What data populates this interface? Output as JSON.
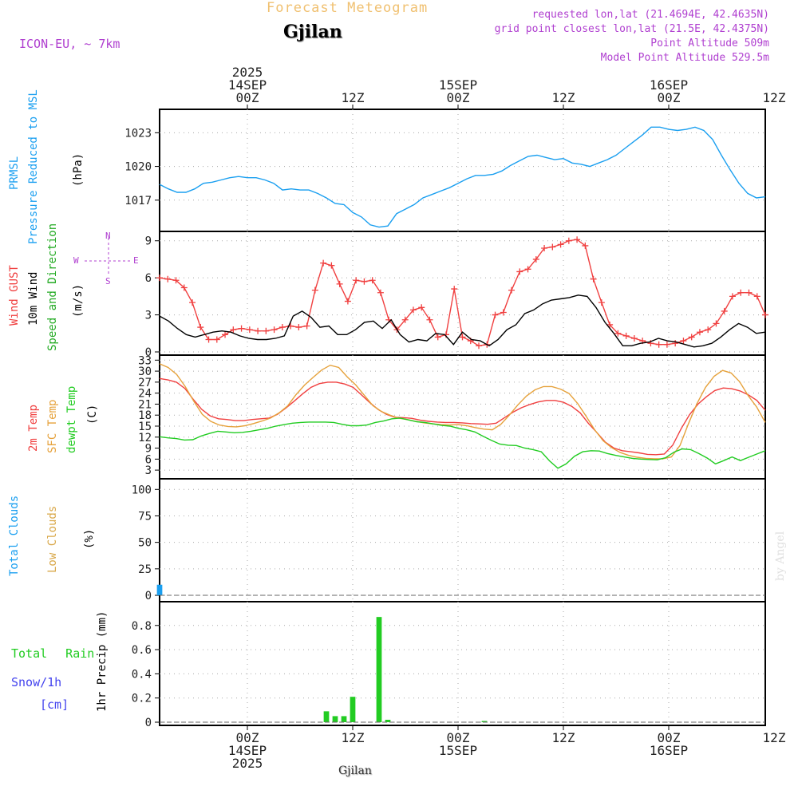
{
  "header": {
    "forecast_title": "Forecast Meteogram",
    "location": "Gjilan",
    "model": "ICON-EU, ~ 7km",
    "requested": "requested lon,lat (21.4694E, 42.4635N)",
    "grid_point": "grid point closest lon,lat (21.5E, 42.4375N)",
    "point_altitude": "Point Altitude 509m",
    "model_altitude": "Model Point Altitude 529.5m",
    "credit": "by Angel",
    "bottom_location": "Gjilan"
  },
  "colors": {
    "pressure": "#1a9ff0",
    "gust": "#f04040",
    "wind": "#000000",
    "temp2m": "#f04040",
    "sfc": "#e6a23c",
    "dew": "#22cc22",
    "total_cloud": "#1a9ff0",
    "low_cloud": "#d9a84a",
    "rain": "#22cc22",
    "snow": "#4444ee",
    "purple": "#b040d0",
    "title_light": "#f0c070"
  },
  "chart_data": {
    "type": "meteogram",
    "time_axis": {
      "unit": "hours since 2025-09-13 14Z",
      "range": [
        0,
        69
      ],
      "top_ticks": [
        {
          "h": 10,
          "lines": [
            "2025",
            "14SEP",
            "00Z"
          ]
        },
        {
          "h": 22,
          "lines": [
            "12Z"
          ]
        },
        {
          "h": 34,
          "lines": [
            "15SEP",
            "00Z"
          ]
        },
        {
          "h": 46,
          "lines": [
            "12Z"
          ]
        },
        {
          "h": 58,
          "lines": [
            "16SEP",
            "00Z"
          ]
        },
        {
          "h": 70,
          "lines": [
            "12Z"
          ]
        }
      ],
      "bottom_ticks": [
        {
          "h": 10,
          "lines": [
            "00Z",
            "14SEP",
            "2025"
          ]
        },
        {
          "h": 22,
          "lines": [
            "12Z"
          ]
        },
        {
          "h": 34,
          "lines": [
            "00Z",
            "15SEP"
          ]
        },
        {
          "h": 46,
          "lines": [
            "12Z"
          ]
        },
        {
          "h": 58,
          "lines": [
            "00Z",
            "16SEP"
          ]
        },
        {
          "h": 70,
          "lines": [
            "12Z"
          ]
        }
      ]
    },
    "panels": [
      {
        "id": "pressure",
        "labels": [
          "PRMSL",
          "Pressure Reduced to MSL",
          "(hPa)"
        ],
        "ylim": [
          1014.5,
          1024.8
        ],
        "yticks": [
          1017,
          1020,
          1023
        ],
        "series": [
          {
            "name": "PRMSL",
            "color": "pressure",
            "values": [
              1018.4,
              1018.0,
              1017.7,
              1017.7,
              1018.0,
              1018.5,
              1018.6,
              1018.8,
              1019.0,
              1019.1,
              1019.0,
              1019.0,
              1018.8,
              1018.5,
              1017.9,
              1018.0,
              1017.9,
              1017.9,
              1017.6,
              1017.2,
              1016.7,
              1016.6,
              1015.9,
              1015.5,
              1014.8,
              1014.6,
              1014.7,
              1015.8,
              1016.2,
              1016.6,
              1017.2,
              1017.5,
              1017.8,
              1018.1,
              1018.5,
              1018.9,
              1019.2,
              1019.2,
              1019.3,
              1019.6,
              1020.1,
              1020.5,
              1020.9,
              1021.0,
              1020.8,
              1020.6,
              1020.7,
              1020.3,
              1020.2,
              1020.0,
              1020.3,
              1020.6,
              1021.0,
              1021.6,
              1022.2,
              1022.8,
              1023.5,
              1023.5,
              1023.3,
              1023.2,
              1023.3,
              1023.5,
              1023.2,
              1022.4,
              1021.0,
              1019.7,
              1018.5,
              1017.6,
              1017.2,
              1017.3
            ]
          }
        ]
      },
      {
        "id": "wind",
        "labels": [
          "Wind GUST",
          "10m Wind",
          "Speed and Direction",
          "(m/s)"
        ],
        "compass": [
          "N",
          "W",
          "E",
          "S"
        ],
        "ylim": [
          0,
          9.5
        ],
        "yticks": [
          0,
          3,
          6,
          9
        ],
        "series": [
          {
            "name": "Wind GUST",
            "color": "gust",
            "markers": true,
            "values": [
              6.0,
              5.9,
              5.8,
              5.2,
              4.0,
              2.0,
              1.0,
              1.0,
              1.4,
              1.8,
              1.9,
              1.8,
              1.7,
              1.7,
              1.8,
              2.0,
              2.1,
              2.0,
              2.1,
              5.0,
              7.2,
              7.0,
              5.5,
              4.1,
              5.8,
              5.7,
              5.8,
              4.8,
              2.6,
              1.8,
              2.6,
              3.4,
              3.6,
              2.6,
              1.2,
              1.4,
              5.1,
              1.2,
              0.9,
              0.5,
              0.6,
              3.0,
              3.2,
              5.0,
              6.5,
              6.7,
              7.5,
              8.4,
              8.5,
              8.7,
              9.0,
              9.1,
              8.6,
              5.9,
              4.0,
              2.2,
              1.5,
              1.3,
              1.1,
              0.9,
              0.7,
              0.6,
              0.6,
              0.7,
              0.9,
              1.2,
              1.6,
              1.8,
              2.3,
              3.3,
              4.5,
              4.8,
              4.8,
              4.5,
              3.0
            ]
          },
          {
            "name": "10m Wind",
            "color": "wind",
            "values": [
              2.9,
              2.5,
              1.9,
              1.4,
              1.2,
              1.4,
              1.6,
              1.7,
              1.6,
              1.3,
              1.1,
              1.0,
              1.0,
              1.1,
              1.3,
              2.9,
              3.3,
              2.8,
              2.0,
              2.1,
              1.4,
              1.4,
              1.8,
              2.4,
              2.5,
              1.9,
              2.6,
              1.4,
              0.8,
              1.0,
              0.9,
              1.5,
              1.4,
              0.6,
              1.6,
              1.0,
              0.9,
              0.5,
              1.0,
              1.8,
              2.2,
              3.1,
              3.4,
              3.9,
              4.2,
              4.3,
              4.4,
              4.6,
              4.5,
              3.6,
              2.4,
              1.5,
              0.5,
              0.5,
              0.7,
              0.8,
              1.1,
              0.9,
              0.8,
              0.6,
              0.4,
              0.5,
              0.7,
              1.2,
              1.8,
              2.3,
              2.0,
              1.5,
              1.6
            ]
          }
        ]
      },
      {
        "id": "temperature",
        "labels": [
          "2m Temp",
          "SFC Temp",
          "dewpt Temp",
          "(C)"
        ],
        "ylim": [
          1.5,
          33.5
        ],
        "yticks": [
          3,
          6,
          9,
          12,
          15,
          18,
          21,
          24,
          27,
          30,
          33
        ],
        "series": [
          {
            "name": "2m Temp",
            "color": "temp2m",
            "values": [
              28.0,
              27.6,
              27.0,
              25.3,
              22.3,
              19.6,
              17.8,
              17.0,
              16.8,
              16.5,
              16.5,
              16.8,
              17.0,
              17.2,
              18.2,
              19.9,
              21.8,
              23.8,
              25.6,
              26.6,
              27.0,
              27.0,
              26.5,
              25.6,
              23.5,
              21.4,
              19.5,
              18.2,
              17.4,
              17.3,
              17.1,
              16.6,
              16.3,
              16.1,
              16.0,
              16.0,
              15.9,
              15.7,
              15.6,
              15.5,
              15.8,
              17.3,
              18.8,
              20.0,
              20.9,
              21.6,
              22.0,
              22.0,
              21.5,
              20.4,
              18.6,
              15.7,
              13.2,
              10.6,
              9.0,
              8.3,
              8.0,
              7.7,
              7.3,
              7.2,
              7.4,
              9.8,
              14.3,
              18.1,
              21.0,
              23.0,
              24.7,
              25.4,
              25.2,
              24.6,
              23.5,
              22.0,
              19.3
            ]
          },
          {
            "name": "SFC Temp",
            "color": "sfc",
            "values": [
              32.0,
              31.0,
              29.1,
              25.8,
              21.8,
              18.2,
              16.3,
              15.3,
              14.9,
              14.8,
              15.1,
              15.7,
              16.4,
              17.2,
              18.6,
              20.5,
              23.6,
              26.2,
              28.3,
              30.3,
              31.6,
              31.0,
              28.4,
              26.2,
              23.4,
              20.6,
              19.0,
              18.0,
              17.2,
              16.8,
              16.3,
              15.9,
              15.6,
              15.4,
              15.3,
              15.4,
              15.1,
              14.6,
              14.2,
              14.0,
              15.5,
              18.0,
              20.8,
              23.2,
              24.9,
              25.8,
              25.8,
              25.1,
              23.9,
              21.2,
              17.7,
              14.0,
              11.0,
              9.1,
              7.8,
              7.0,
              6.5,
              6.2,
              6.1,
              6.1,
              6.6,
              9.7,
              15.7,
              21.2,
              25.6,
              28.6,
              30.2,
              29.5,
              27.1,
              23.3,
              20.2,
              16.0
            ]
          },
          {
            "name": "dewpt Temp",
            "color": "dew",
            "values": [
              12.1,
              11.8,
              11.6,
              11.2,
              11.3,
              12.3,
              13.0,
              13.6,
              13.4,
              13.2,
              13.3,
              13.6,
              14.0,
              14.4,
              15.0,
              15.4,
              15.8,
              16.0,
              16.1,
              16.1,
              16.1,
              16.0,
              15.5,
              15.1,
              15.1,
              15.3,
              16.0,
              16.4,
              17.0,
              17.2,
              16.7,
              16.2,
              16.0,
              15.6,
              15.2,
              15.0,
              14.4,
              14.0,
              13.4,
              12.2,
              11.1,
              10.1,
              9.8,
              9.7,
              9.0,
              8.6,
              8.0,
              5.5,
              3.5,
              4.7,
              6.8,
              8.0,
              8.3,
              8.2,
              7.5,
              7.0,
              6.6,
              6.2,
              6.0,
              5.9,
              5.8,
              6.4,
              7.9,
              8.8,
              8.6,
              7.5,
              6.3,
              4.7,
              5.6,
              6.6,
              5.6,
              6.5,
              7.4,
              8.3
            ]
          }
        ]
      },
      {
        "id": "clouds",
        "labels": [
          "Total Clouds",
          "Low Clouds",
          "(%)"
        ],
        "ylim": [
          -3,
          107
        ],
        "yticks": [
          0,
          25,
          50,
          75,
          100
        ],
        "series": [
          {
            "name": "Total Clouds",
            "color": "total_cloud",
            "values": [
              10,
              0,
              0,
              0,
              0,
              0,
              0,
              0,
              0,
              0,
              0,
              0,
              0,
              0,
              0,
              0,
              0,
              0,
              0,
              0,
              0,
              0,
              0,
              0,
              0,
              0,
              0,
              0,
              0,
              0,
              0,
              0,
              0,
              0,
              0,
              0,
              0,
              0,
              0,
              0,
              0,
              0,
              0,
              0,
              0,
              0,
              0,
              0,
              0,
              0,
              0,
              0,
              0,
              0,
              0,
              0,
              0,
              0,
              0,
              0,
              0,
              0,
              0,
              0,
              0,
              0,
              0,
              0,
              0,
              0
            ]
          },
          {
            "name": "Low Clouds",
            "color": "low_cloud",
            "values": [
              0,
              0,
              0,
              0,
              0,
              0,
              0,
              0,
              0,
              0,
              0,
              0,
              0,
              0,
              0,
              0,
              0,
              0,
              0,
              0,
              0,
              0,
              0,
              0,
              0,
              0,
              0,
              0,
              0,
              0,
              0,
              0,
              0,
              0,
              0,
              0,
              0,
              0,
              0,
              0,
              0,
              0,
              0,
              0,
              0,
              0,
              0,
              0,
              0,
              0,
              0,
              0,
              0,
              0,
              0,
              0,
              0,
              0,
              0,
              0,
              0,
              0,
              0,
              0,
              0,
              0,
              0,
              0,
              0,
              0
            ]
          }
        ]
      },
      {
        "id": "precip",
        "labels": [
          "Total Rain",
          "Snow/1h",
          "[cm]",
          "1hr Precip (mm)"
        ],
        "ylim": [
          0,
          0.97
        ],
        "yticks": [
          0,
          0.2,
          0.4,
          0.6,
          0.8
        ],
        "ytick_labels": [
          "0",
          "0.2",
          "0.4",
          "0.6",
          "0.8"
        ],
        "series": [
          {
            "name": "Total Rain",
            "color": "rain",
            "values": [
              0,
              0,
              0,
              0,
              0,
              0,
              0,
              0,
              0,
              0,
              0,
              0,
              0,
              0,
              0,
              0,
              0,
              0,
              0,
              0.09,
              0.05,
              0.05,
              0.21,
              0,
              0,
              0.87,
              0.02,
              0,
              0,
              0,
              0,
              0,
              0,
              0,
              0,
              0,
              0,
              0.01,
              0,
              0,
              0,
              0,
              0,
              0,
              0,
              0,
              0,
              0,
              0,
              0,
              0,
              0,
              0,
              0,
              0,
              0,
              0,
              0,
              0,
              0,
              0,
              0,
              0,
              0,
              0,
              0,
              0,
              0,
              0,
              0
            ]
          }
        ]
      }
    ]
  }
}
